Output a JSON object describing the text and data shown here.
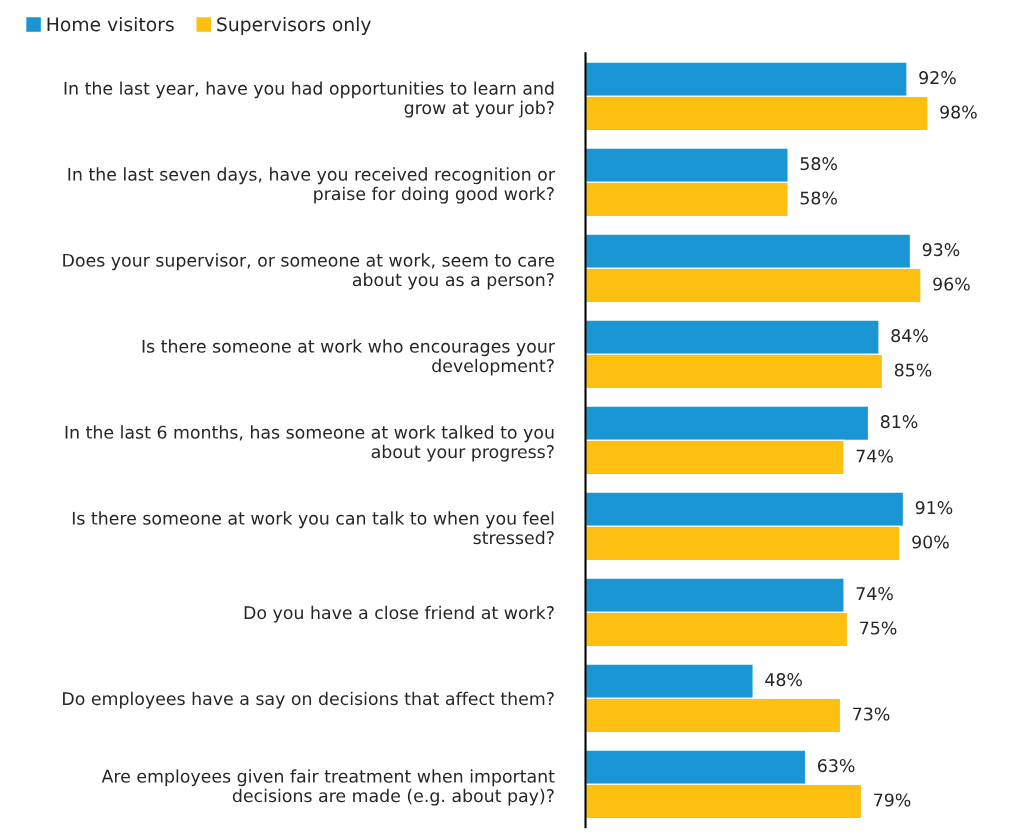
{
  "chart_data": {
    "type": "bar",
    "orientation": "horizontal",
    "categories": [
      "In the last year, have you had opportunities to learn and\ngrow at your job?",
      "In the last seven days, have you received recognition or\npraise for doing good work?",
      "Does your supervisor, or someone at work, seem to care\nabout you as a person?",
      "Is there someone at work who encourages your\ndevelopment?",
      "In the last 6 months, has someone at work talked to you\nabout your progress?",
      "Is there someone at work you can talk to when you feel\nstressed?",
      "Do you have a close friend at work?",
      "Do employees have a say on decisions that affect them?",
      "Are employees given fair treatment when important\ndecisions are made (e.g. about pay)?"
    ],
    "series": [
      {
        "name": "Home visitors",
        "color": "#1a96d4",
        "values": [
          92,
          58,
          93,
          84,
          81,
          91,
          74,
          48,
          63
        ],
        "value_labels": [
          "92%",
          "58%",
          "93%",
          "84%",
          "81%",
          "91%",
          "74%",
          "48%",
          "63%"
        ]
      },
      {
        "name": "Supervisors only",
        "color": "#fdc010",
        "values": [
          98,
          58,
          96,
          85,
          74,
          90,
          75,
          73,
          79
        ],
        "value_labels": [
          "98%",
          "58%",
          "96%",
          "85%",
          "74%",
          "90%",
          "75%",
          "73%",
          "79%"
        ]
      }
    ],
    "tick_labels": "y",
    "grid": false,
    "legend": "top left"
  }
}
